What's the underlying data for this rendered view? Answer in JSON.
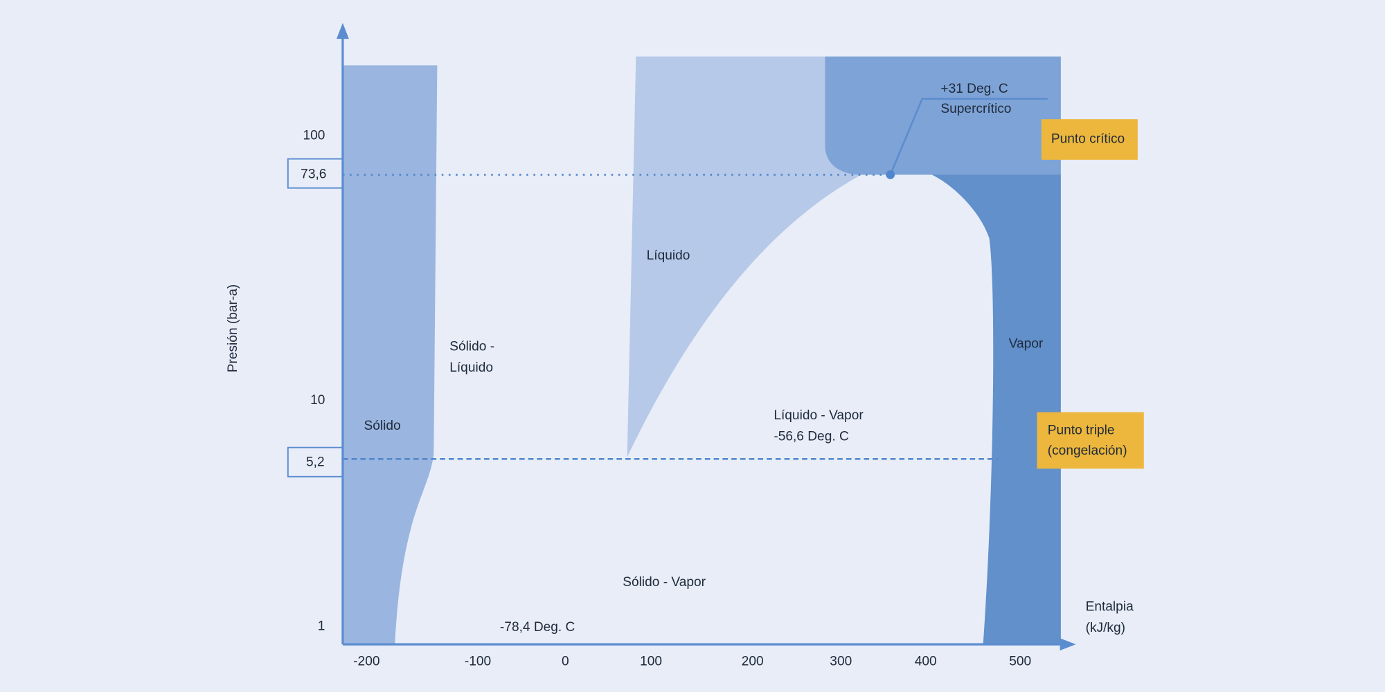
{
  "y_axis": {
    "title": "Presión (bar-a)",
    "ticks": [
      "100",
      "10",
      "1"
    ],
    "marked_ticks": [
      "73,6",
      "5,2"
    ]
  },
  "x_axis": {
    "title": [
      "Entalpia",
      "(kJ/kg)"
    ],
    "ticks": [
      "-200",
      "-100",
      "0",
      "100",
      "200",
      "300",
      "400",
      "500"
    ]
  },
  "regions": [
    {
      "label": [
        "Sólido"
      ]
    },
    {
      "label": [
        "Sólido -",
        "Líquido"
      ]
    },
    {
      "label": [
        "Líquido"
      ]
    },
    {
      "label": [
        "Líquido - Vapor",
        "-56,6 Deg. C"
      ]
    },
    {
      "label": [
        "Sólido - Vapor"
      ]
    },
    {
      "label": [
        "-78,4 Deg. C"
      ]
    },
    {
      "label": [
        "Vapor"
      ]
    },
    {
      "label": [
        "+31 Deg. C",
        "Supercrítico"
      ]
    }
  ],
  "callouts": [
    {
      "label": [
        "Punto crítico"
      ]
    },
    {
      "label": [
        "Punto triple",
        "(congelación)"
      ]
    }
  ]
}
